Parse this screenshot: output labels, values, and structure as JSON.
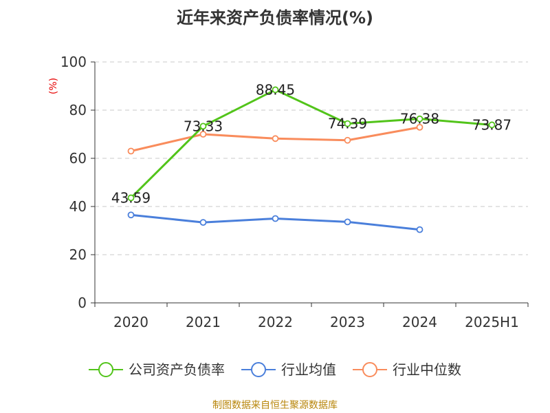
{
  "chart_data": {
    "type": "line",
    "title": "近年来资产负债率情况(%)",
    "ylabel": "(%)",
    "ylim": [
      0,
      100
    ],
    "yticks": [
      0,
      20,
      40,
      60,
      80,
      100
    ],
    "grid": true,
    "legend_position": "bottom",
    "categories": [
      "2020",
      "2021",
      "2022",
      "2023",
      "2024",
      "2025H1"
    ],
    "series": [
      {
        "name": "公司资产负债率",
        "color": "#52c41a",
        "values": [
          43.59,
          73.33,
          88.45,
          74.39,
          76.38,
          73.87
        ],
        "labels": [
          "43.59",
          "73.33",
          "88.45",
          "74.39",
          "76.38",
          "73.87"
        ]
      },
      {
        "name": "行业均值",
        "color": "#4a7fdb",
        "values": [
          36.5,
          33.4,
          35.0,
          33.6,
          30.4,
          null
        ]
      },
      {
        "name": "行业中位数",
        "color": "#f98c5c",
        "values": [
          63.0,
          70.0,
          68.2,
          67.5,
          72.9,
          null
        ]
      }
    ]
  },
  "source": "制图数据来自恒生聚源数据库"
}
